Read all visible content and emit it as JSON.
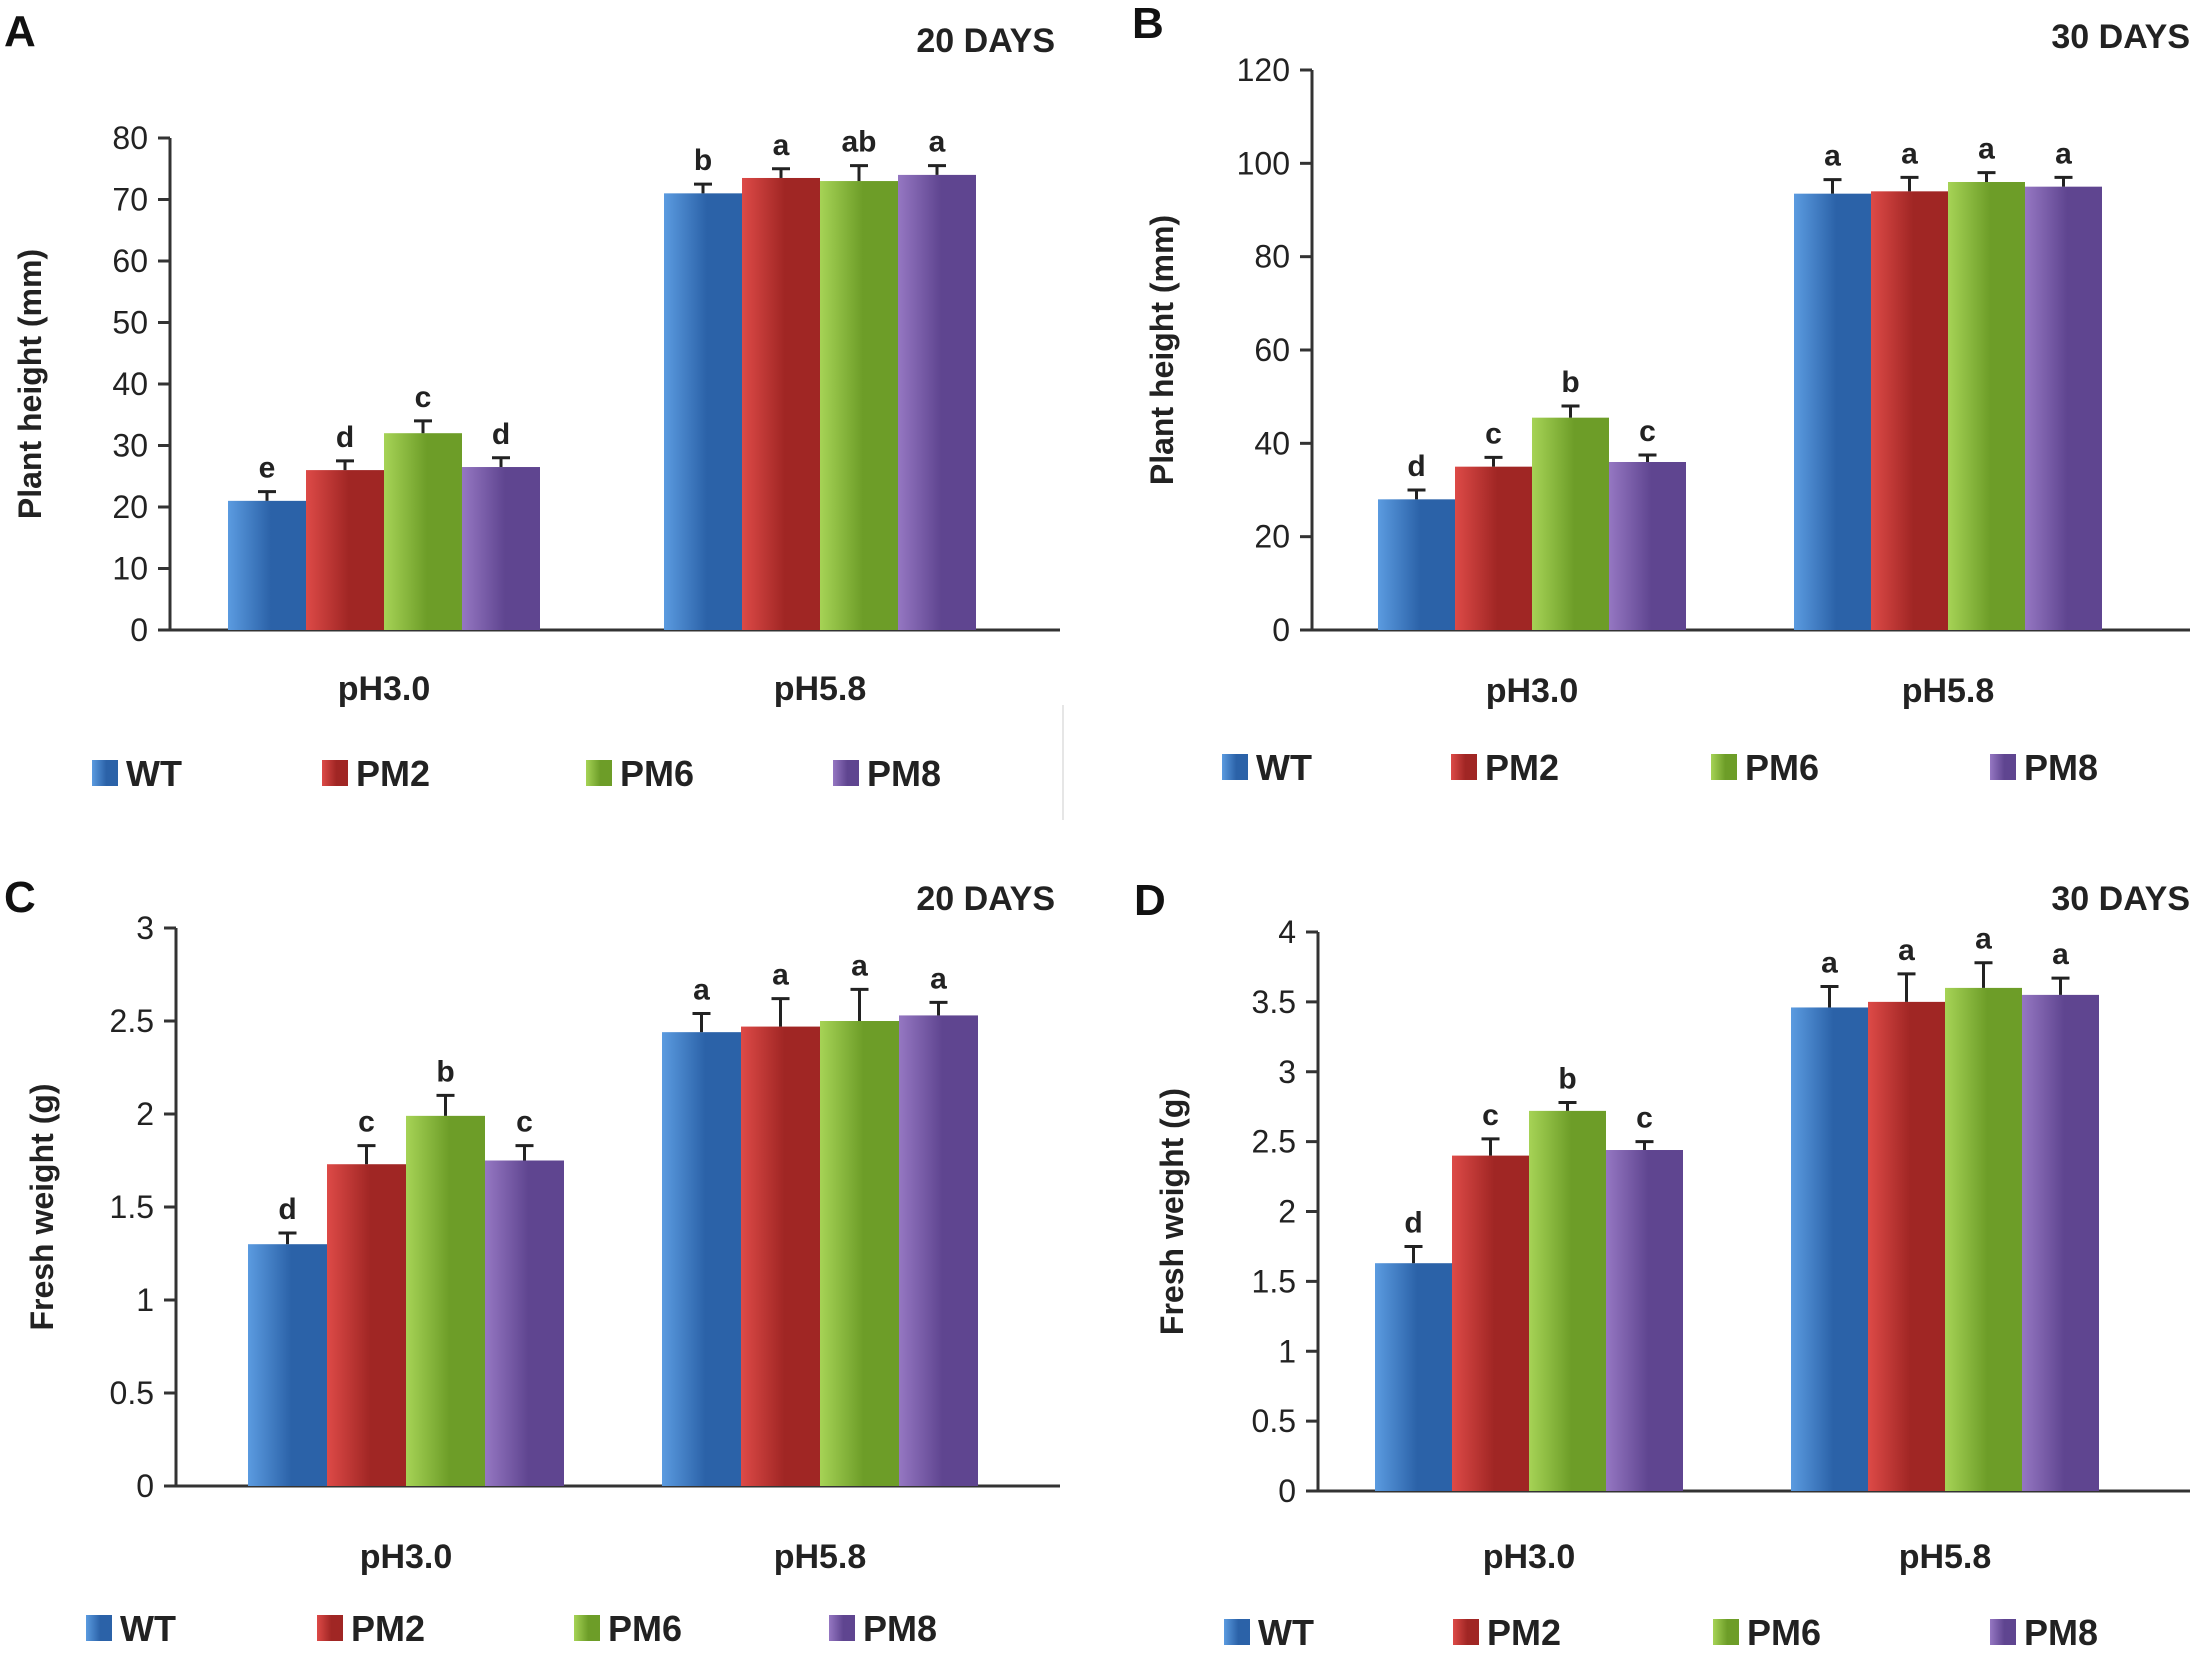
{
  "series_colors": {
    "WT": [
      "#5b9be0",
      "#2b62a8"
    ],
    "PM2": [
      "#dd4a47",
      "#a02624"
    ],
    "PM6": [
      "#a6d356",
      "#6d9d28"
    ],
    "PM8": [
      "#9577c2",
      "#5f4590"
    ]
  },
  "chart_data": [
    {
      "panel": "A",
      "type": "bar",
      "title": "20 DAYS",
      "ylabel": "Plant height (mm)",
      "xlabel": "",
      "ylim": [
        0,
        80
      ],
      "yticks": [
        0,
        10,
        20,
        30,
        40,
        50,
        60,
        70,
        80
      ],
      "categories": [
        "pH3.0",
        "pH5.8"
      ],
      "series": [
        {
          "name": "WT",
          "values": [
            21,
            71
          ],
          "errors": [
            1.5,
            1.5
          ],
          "letters": [
            "e",
            "b"
          ]
        },
        {
          "name": "PM2",
          "values": [
            26,
            73.5
          ],
          "errors": [
            1.5,
            1.5
          ],
          "letters": [
            "d",
            "a"
          ]
        },
        {
          "name": "PM6",
          "values": [
            32,
            73
          ],
          "errors": [
            2,
            2.5
          ],
          "letters": [
            "c",
            "ab"
          ]
        },
        {
          "name": "PM8",
          "values": [
            26.5,
            74
          ],
          "errors": [
            1.5,
            1.5
          ],
          "letters": [
            "d",
            "a"
          ]
        }
      ]
    },
    {
      "panel": "B",
      "type": "bar",
      "title": "30 DAYS",
      "ylabel": "Plant height (mm)",
      "xlabel": "",
      "ylim": [
        0,
        120
      ],
      "yticks": [
        0,
        20,
        40,
        60,
        80,
        100,
        120
      ],
      "categories": [
        "pH3.0",
        "pH5.8"
      ],
      "series": [
        {
          "name": "WT",
          "values": [
            28,
            93.5
          ],
          "errors": [
            2,
            3
          ],
          "letters": [
            "d",
            "a"
          ]
        },
        {
          "name": "PM2",
          "values": [
            35,
            94
          ],
          "errors": [
            2,
            3
          ],
          "letters": [
            "c",
            "a"
          ]
        },
        {
          "name": "PM6",
          "values": [
            45.5,
            96
          ],
          "errors": [
            2.5,
            2
          ],
          "letters": [
            "b",
            "a"
          ]
        },
        {
          "name": "PM8",
          "values": [
            36,
            95
          ],
          "errors": [
            1.5,
            2
          ],
          "letters": [
            "c",
            "a"
          ]
        }
      ]
    },
    {
      "panel": "C",
      "type": "bar",
      "title": "20 DAYS",
      "ylabel": "Fresh weight (g)",
      "xlabel": "",
      "ylim": [
        0,
        3
      ],
      "yticks": [
        "0",
        "0.5",
        "1",
        "1.5",
        "2",
        "2.5",
        "3"
      ],
      "categories": [
        "pH3.0",
        "pH5.8"
      ],
      "series": [
        {
          "name": "WT",
          "values": [
            1.3,
            2.44
          ],
          "errors": [
            0.06,
            0.1
          ],
          "letters": [
            "d",
            "a"
          ]
        },
        {
          "name": "PM2",
          "values": [
            1.73,
            2.47
          ],
          "errors": [
            0.1,
            0.15
          ],
          "letters": [
            "c",
            "a"
          ]
        },
        {
          "name": "PM6",
          "values": [
            1.99,
            2.5
          ],
          "errors": [
            0.11,
            0.17
          ],
          "letters": [
            "b",
            "a"
          ]
        },
        {
          "name": "PM8",
          "values": [
            1.75,
            2.53
          ],
          "errors": [
            0.08,
            0.07
          ],
          "letters": [
            "c",
            "a"
          ]
        }
      ]
    },
    {
      "panel": "D",
      "type": "bar",
      "title": "30 DAYS",
      "ylabel": "Fresh  weight (g)",
      "xlabel": "",
      "ylim": [
        0,
        4
      ],
      "yticks": [
        "0",
        "0.5",
        "1",
        "1.5",
        "2",
        "2.5",
        "3",
        "3.5",
        "4"
      ],
      "categories": [
        "pH3.0",
        "pH5.8"
      ],
      "series": [
        {
          "name": "WT",
          "values": [
            1.63,
            3.46
          ],
          "errors": [
            0.12,
            0.15
          ],
          "letters": [
            "d",
            "a"
          ]
        },
        {
          "name": "PM2",
          "values": [
            2.4,
            3.5
          ],
          "errors": [
            0.12,
            0.2
          ],
          "letters": [
            "c",
            "a"
          ]
        },
        {
          "name": "PM6",
          "values": [
            2.72,
            3.6
          ],
          "errors": [
            0.06,
            0.18
          ],
          "letters": [
            "b",
            "a"
          ]
        },
        {
          "name": "PM8",
          "values": [
            2.44,
            3.55
          ],
          "errors": [
            0.06,
            0.12
          ],
          "letters": [
            "c",
            "a"
          ]
        }
      ]
    }
  ]
}
